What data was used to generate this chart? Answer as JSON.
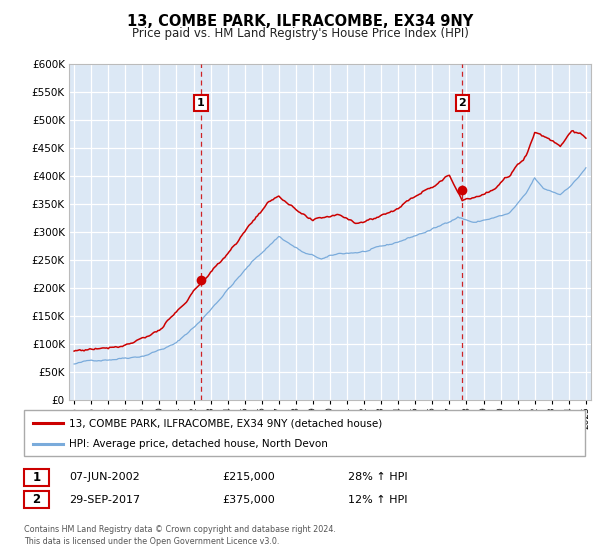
{
  "title": "13, COMBE PARK, ILFRACOMBE, EX34 9NY",
  "subtitle": "Price paid vs. HM Land Registry's House Price Index (HPI)",
  "legend_line1": "13, COMBE PARK, ILFRACOMBE, EX34 9NY (detached house)",
  "legend_line2": "HPI: Average price, detached house, North Devon",
  "sale1_label": "1",
  "sale1_date": "07-JUN-2002",
  "sale1_price": "£215,000",
  "sale1_hpi": "28% ↑ HPI",
  "sale2_label": "2",
  "sale2_date": "29-SEP-2017",
  "sale2_price": "£375,000",
  "sale2_hpi": "12% ↑ HPI",
  "footer": "Contains HM Land Registry data © Crown copyright and database right 2024.\nThis data is licensed under the Open Government Licence v3.0.",
  "property_color": "#cc0000",
  "hpi_color": "#7aabdb",
  "vline_color": "#cc0000",
  "sale1_year": 2002.44,
  "sale2_year": 2017.75,
  "sale1_price_val": 215000,
  "sale2_price_val": 375000,
  "ylim": [
    0,
    600000
  ],
  "xlim_start": 1994.7,
  "xlim_end": 2025.3,
  "background_color": "#dce8f5",
  "fig_bg": "#ffffff"
}
